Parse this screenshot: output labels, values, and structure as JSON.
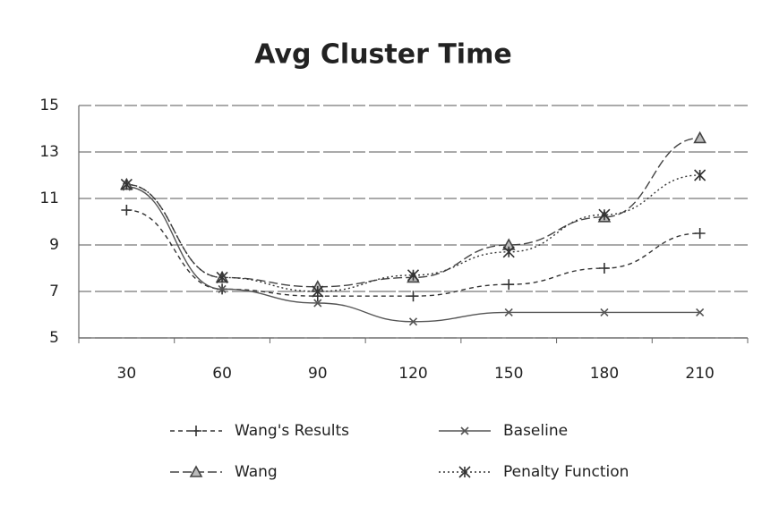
{
  "chart_data": {
    "type": "line",
    "title": "Avg Cluster Time",
    "categories": [
      "30",
      "60",
      "90",
      "120",
      "150",
      "180",
      "210"
    ],
    "series": [
      {
        "name": "Wang's Results",
        "color": "#333333",
        "values": [
          10.5,
          7.1,
          6.8,
          6.8,
          7.3,
          8.0,
          9.5
        ]
      },
      {
        "name": "Baseline",
        "color": "#555555",
        "values": [
          11.5,
          7.1,
          6.5,
          5.7,
          6.1,
          6.1,
          6.1
        ]
      },
      {
        "name": "Wang",
        "color": "#444444",
        "values": [
          11.6,
          7.6,
          7.2,
          7.6,
          9.0,
          10.2,
          13.6
        ]
      },
      {
        "name": "Penalty Function",
        "color": "#333333",
        "values": [
          11.6,
          7.6,
          7.0,
          7.7,
          8.7,
          10.3,
          12.0
        ]
      }
    ],
    "ylim": [
      5,
      15
    ],
    "yticks": [
      5,
      7,
      9,
      11,
      13,
      15
    ],
    "grid": true
  }
}
